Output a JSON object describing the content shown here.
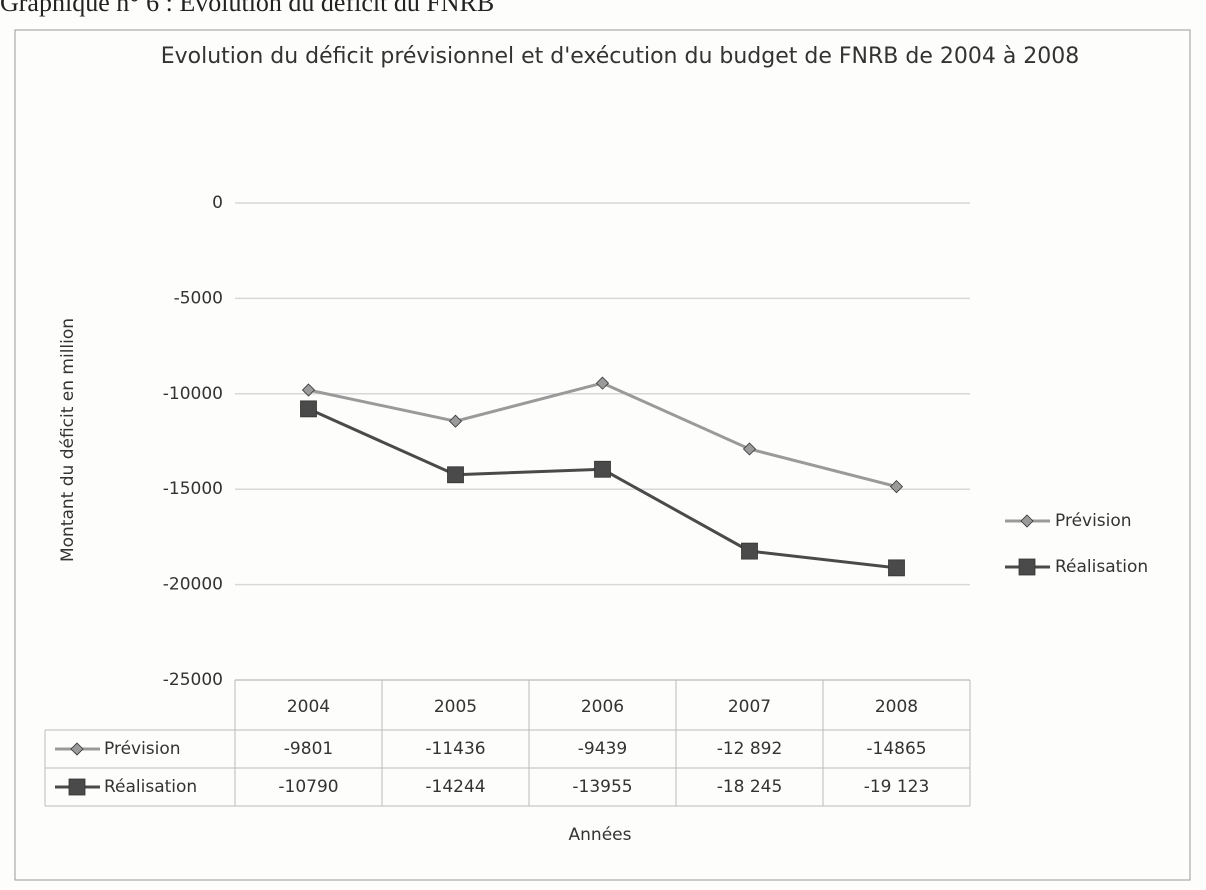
{
  "page_caption": "Graphique n° 6 : Evolution du déficit du FNRB",
  "chart_data": {
    "type": "line",
    "title": "Evolution du déficit prévisionnel et d'exécution du budget de FNRB de 2004 à 2008",
    "y_label": "Montant du déficit en million",
    "x_label": "Années",
    "categories": [
      "2004",
      "2005",
      "2006",
      "2007",
      "2008"
    ],
    "series": [
      {
        "name": "Prévision",
        "color": "#9a9a9a",
        "marker": "diamond",
        "values": [
          -9801,
          -11436,
          -9439,
          -12892,
          -14865
        ],
        "value_labels": [
          "-9801",
          "-11436",
          "-9439",
          "-12 892",
          "-14865"
        ]
      },
      {
        "name": "Réalisation",
        "color": "#4a4a4a",
        "marker": "square",
        "values": [
          -10790,
          -14244,
          -13955,
          -18245,
          -19123
        ],
        "value_labels": [
          "-10790",
          "-14244",
          "-13955",
          "-18 245",
          "-19 123"
        ]
      }
    ],
    "ylim": [
      -25000,
      0
    ],
    "yticks": [
      0,
      -5000,
      -10000,
      -15000,
      -20000,
      -25000
    ],
    "grid": true,
    "legend": "right",
    "data_table": true
  }
}
